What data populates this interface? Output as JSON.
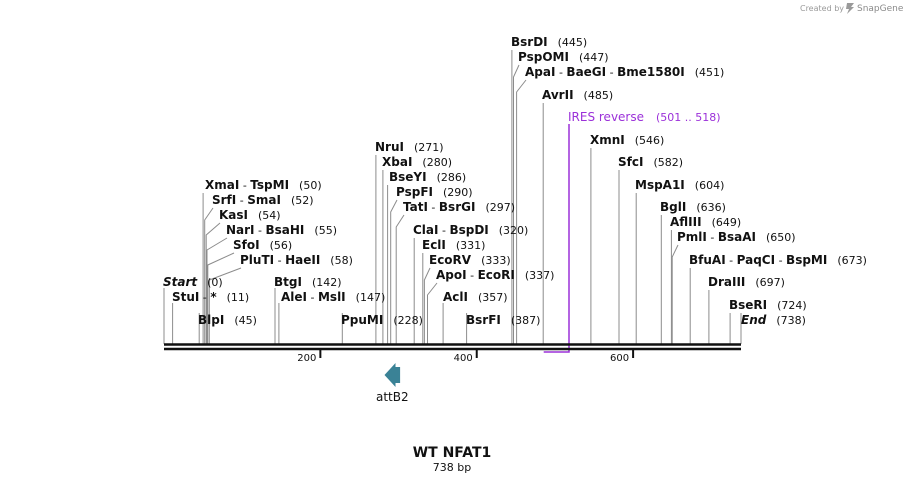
{
  "branding": {
    "created_by": "Created by",
    "product": "SnapGene"
  },
  "plasmid": {
    "name": "WT NFAT1",
    "length_label": "738 bp",
    "length": 738
  },
  "ruler": {
    "ticks": [
      {
        "bp": 200,
        "label": "200"
      },
      {
        "bp": 400,
        "label": "400"
      },
      {
        "bp": 600,
        "label": "600"
      }
    ]
  },
  "sites": [
    {
      "names": [
        "Start"
      ],
      "pos": "(0)",
      "bp": 0,
      "italic": true
    },
    {
      "names": [
        "StuI",
        "*"
      ],
      "pos": "(11)",
      "bp": 11
    },
    {
      "names": [
        "BlpI"
      ],
      "pos": "(45)",
      "bp": 45
    },
    {
      "names": [
        "XmaI",
        "TspMI"
      ],
      "pos": "(50)",
      "bp": 50
    },
    {
      "names": [
        "SrfI",
        "SmaI"
      ],
      "pos": "(52)",
      "bp": 52
    },
    {
      "names": [
        "KasI"
      ],
      "pos": "(54)",
      "bp": 54
    },
    {
      "names": [
        "NarI",
        "BsaHI"
      ],
      "pos": "(55)",
      "bp": 55
    },
    {
      "names": [
        "SfoI"
      ],
      "pos": "(56)",
      "bp": 56
    },
    {
      "names": [
        "PluTI",
        "HaeII"
      ],
      "pos": "(58)",
      "bp": 58
    },
    {
      "names": [
        "BtgI"
      ],
      "pos": "(142)",
      "bp": 142
    },
    {
      "names": [
        "AleI",
        "MslI"
      ],
      "pos": "(147)",
      "bp": 147
    },
    {
      "names": [
        "PpuMI"
      ],
      "pos": "(228)",
      "bp": 228
    },
    {
      "names": [
        "NruI"
      ],
      "pos": "(271)",
      "bp": 271
    },
    {
      "names": [
        "XbaI"
      ],
      "pos": "(280)",
      "bp": 280
    },
    {
      "names": [
        "BseYI"
      ],
      "pos": "(286)",
      "bp": 286
    },
    {
      "names": [
        "PspFI"
      ],
      "pos": "(290)",
      "bp": 290
    },
    {
      "names": [
        "TatI",
        "BsrGI"
      ],
      "pos": "(297)",
      "bp": 297
    },
    {
      "names": [
        "ClaI",
        "BspDI"
      ],
      "pos": "(320)",
      "bp": 320
    },
    {
      "names": [
        "EclI"
      ],
      "pos": "(331)",
      "bp": 331
    },
    {
      "names": [
        "EcoRV"
      ],
      "pos": "(333)",
      "bp": 333
    },
    {
      "names": [
        "ApoI",
        "EcoRI"
      ],
      "pos": "(337)",
      "bp": 337
    },
    {
      "names": [
        "AclI"
      ],
      "pos": "(357)",
      "bp": 357
    },
    {
      "names": [
        "BsrFI"
      ],
      "pos": "(387)",
      "bp": 387
    },
    {
      "names": [
        "BsrDI"
      ],
      "pos": "(445)",
      "bp": 445
    },
    {
      "names": [
        "PspOMI"
      ],
      "pos": "(447)",
      "bp": 447
    },
    {
      "names": [
        "ApaI",
        "BaeGI",
        "Bme1580I"
      ],
      "pos": "(451)",
      "bp": 451
    },
    {
      "names": [
        "AvrII"
      ],
      "pos": "(485)",
      "bp": 485
    },
    {
      "names": [
        "XmnI"
      ],
      "pos": "(546)",
      "bp": 546
    },
    {
      "names": [
        "SfcI"
      ],
      "pos": "(582)",
      "bp": 582
    },
    {
      "names": [
        "MspA1I"
      ],
      "pos": "(604)",
      "bp": 604
    },
    {
      "names": [
        "BglI"
      ],
      "pos": "(636)",
      "bp": 636
    },
    {
      "names": [
        "AflIII"
      ],
      "pos": "(649)",
      "bp": 649
    },
    {
      "names": [
        "PmlI",
        "BsaAI"
      ],
      "pos": "(650)",
      "bp": 650
    },
    {
      "names": [
        "BfuAI",
        "PaqCI",
        "BspMI"
      ],
      "pos": "(673)",
      "bp": 673
    },
    {
      "names": [
        "DraIII"
      ],
      "pos": "(697)",
      "bp": 697
    },
    {
      "names": [
        "BseRI"
      ],
      "pos": "(724)",
      "bp": 724
    },
    {
      "names": [
        "End"
      ],
      "pos": "(738)",
      "bp": 738,
      "italic": true
    }
  ],
  "primer": {
    "label": "IRES reverse",
    "range": "(501 .. 518)",
    "start": 501,
    "end": 518,
    "color": "#9b30d9"
  },
  "feature": {
    "label": "attB2",
    "color": "#3a8296",
    "start": 282,
    "end": 302,
    "direction": "reverse"
  }
}
